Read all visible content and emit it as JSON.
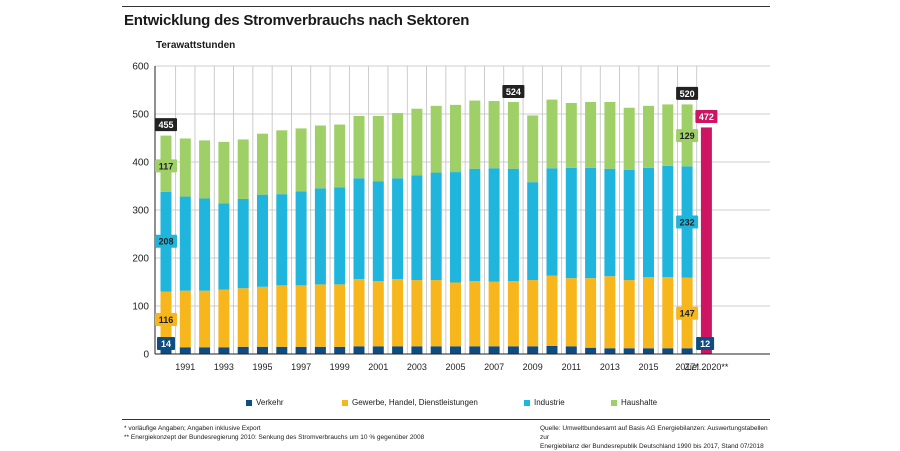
{
  "title": "Entwicklung des Stromverbrauchs nach Sektoren",
  "unit_label": "Terawattstunden",
  "colors": {
    "verkehr": "#0f4c81",
    "gewerbe": "#f7b61b",
    "industrie": "#1fb5dc",
    "haushalte": "#9ed067",
    "ziel": "#cf1464",
    "grid": "#bfbfbf",
    "axis": "#222222"
  },
  "legend": [
    {
      "key": "verkehr",
      "label": "Verkehr"
    },
    {
      "key": "gewerbe",
      "label": "Gewerbe, Handel, Dienstleistungen"
    },
    {
      "key": "industrie",
      "label": "Industrie"
    },
    {
      "key": "haushalte",
      "label": "Haushalte"
    }
  ],
  "footnotes": {
    "left_1": "* vorläufige Angaben; Angaben inklusive Export",
    "left_2": "** Energiekonzept der Bundesregierung 2010: Senkung des Stromverbrauchs um 10 % gegenüber 2008",
    "right_1": "Quelle: Umweltbundesamt auf Basis AG Energiebilanzen: Auswertungstabellen zur",
    "right_2": "Energiebilanz der Bundesrepublik Deutschland 1990 bis 2017, Stand 07/2018"
  },
  "chart_data": {
    "type": "bar",
    "stacked": true,
    "ylim": [
      0,
      600
    ],
    "yticks": [
      0,
      100,
      200,
      300,
      400,
      500,
      600
    ],
    "grid": true,
    "categories": [
      "1990",
      "1991",
      "1992",
      "1993",
      "1994",
      "1995",
      "1996",
      "1997",
      "1998",
      "1999",
      "2000",
      "2001",
      "2002",
      "2003",
      "2004",
      "2005",
      "2006",
      "2007",
      "2008",
      "2009",
      "2010",
      "2011",
      "2012",
      "2013",
      "2014",
      "2015",
      "2016",
      "2017*",
      "Ziel 2020**"
    ],
    "xtick_labels": [
      "1991",
      "1993",
      "1995",
      "1997",
      "1999",
      "2001",
      "2003",
      "2005",
      "2007",
      "2009",
      "2011",
      "2013",
      "2015",
      "2017*",
      "Ziel 2020**"
    ],
    "ellipsis": "........",
    "series": [
      {
        "name": "Verkehr",
        "key": "verkehr",
        "values": [
          14,
          14,
          14,
          14,
          15,
          15,
          15,
          15,
          15,
          15,
          16,
          16,
          16,
          16,
          16,
          16,
          16,
          16,
          16,
          16,
          17,
          16,
          13,
          12,
          12,
          12,
          12,
          12,
          null
        ]
      },
      {
        "name": "Gewerbe, Handel, Dienstleistungen",
        "key": "gewerbe",
        "values": [
          116,
          118,
          118,
          120,
          122,
          125,
          128,
          128,
          130,
          130,
          140,
          136,
          140,
          138,
          138,
          133,
          136,
          135,
          136,
          138,
          146,
          142,
          145,
          150,
          142,
          148,
          148,
          147,
          null
        ]
      },
      {
        "name": "Industrie",
        "key": "industrie",
        "values": [
          208,
          196,
          192,
          180,
          186,
          192,
          190,
          196,
          200,
          202,
          210,
          208,
          210,
          218,
          224,
          230,
          234,
          236,
          234,
          204,
          224,
          230,
          230,
          224,
          230,
          228,
          232,
          232,
          null
        ]
      },
      {
        "name": "Haushalte",
        "key": "haushalte",
        "values": [
          117,
          121,
          121,
          128,
          124,
          127,
          133,
          131,
          131,
          131,
          130,
          136,
          136,
          139,
          139,
          140,
          142,
          140,
          139,
          139,
          143,
          135,
          137,
          139,
          129,
          129,
          128,
          129,
          null
        ]
      }
    ],
    "ziel": {
      "category": "Ziel 2020**",
      "value": 472
    },
    "annotations": {
      "total_1990": "455",
      "total_2008": "524",
      "total_2017": "520",
      "ziel_total": "472",
      "haushalte_1990": "117",
      "industrie_1990": "208",
      "gewerbe_1990": "116",
      "verkehr_1990": "14",
      "haushalte_2017": "129",
      "industrie_2017": "232",
      "gewerbe_2017": "147",
      "verkehr_2017": "12"
    }
  }
}
